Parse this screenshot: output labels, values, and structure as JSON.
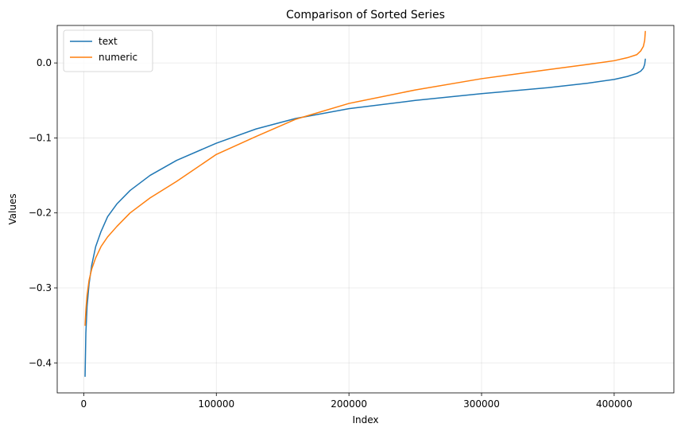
{
  "chart_data": {
    "type": "line",
    "title": "Comparison of Sorted Series",
    "xlabel": "Index",
    "ylabel": "Values",
    "xlim": [
      -20000,
      445000
    ],
    "ylim": [
      -0.44,
      0.05
    ],
    "xticks": [
      0,
      100000,
      200000,
      300000,
      400000
    ],
    "xtick_labels": [
      "0",
      "100000",
      "200000",
      "300000",
      "400000"
    ],
    "yticks": [
      -0.4,
      -0.3,
      -0.2,
      -0.1,
      0.0
    ],
    "ytick_labels": [
      "−0.4",
      "−0.3",
      "−0.2",
      "−0.1",
      "0.0"
    ],
    "grid": true,
    "legend_position": "top-left",
    "series": [
      {
        "name": "text",
        "color": "#1f77b4",
        "x": [
          1000,
          1600,
          2500,
          4000,
          6000,
          9000,
          13000,
          18000,
          25000,
          35000,
          50000,
          70000,
          100000,
          130000,
          160000,
          200000,
          250000,
          300000,
          350000,
          380000,
          400000,
          410000,
          417000,
          420000,
          422000,
          423000,
          423500
        ],
        "y": [
          -0.418,
          -0.36,
          -0.325,
          -0.295,
          -0.27,
          -0.245,
          -0.225,
          -0.205,
          -0.188,
          -0.17,
          -0.15,
          -0.13,
          -0.107,
          -0.088,
          -0.074,
          -0.061,
          -0.05,
          -0.041,
          -0.033,
          -0.027,
          -0.022,
          -0.018,
          -0.014,
          -0.011,
          -0.007,
          -0.002,
          0.005
        ]
      },
      {
        "name": "numeric",
        "color": "#ff7f0e",
        "x": [
          1000,
          1600,
          2500,
          4000,
          6000,
          9000,
          13000,
          18000,
          25000,
          35000,
          50000,
          70000,
          100000,
          130000,
          160000,
          200000,
          250000,
          300000,
          350000,
          380000,
          400000,
          410000,
          417000,
          420000,
          422000,
          423000,
          423500
        ],
        "y": [
          -0.35,
          -0.33,
          -0.31,
          -0.29,
          -0.275,
          -0.26,
          -0.245,
          -0.232,
          -0.218,
          -0.2,
          -0.18,
          -0.158,
          -0.122,
          -0.098,
          -0.075,
          -0.054,
          -0.036,
          -0.021,
          -0.009,
          -0.002,
          0.003,
          0.007,
          0.011,
          0.016,
          0.022,
          0.03,
          0.042
        ]
      }
    ]
  }
}
